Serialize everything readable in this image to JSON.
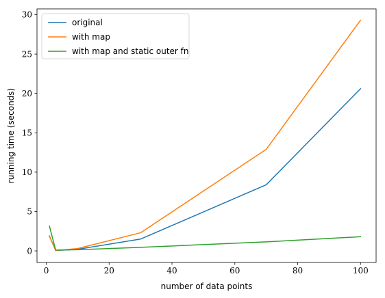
{
  "chart_data": {
    "type": "line",
    "title": "",
    "xlabel": "number of data points",
    "ylabel": "running time (seconds)",
    "xlim": [
      -2.95,
      104.95
    ],
    "ylim": [
      -1.47,
      30.74
    ],
    "xticks": [
      0,
      20,
      40,
      60,
      80,
      100
    ],
    "yticks": [
      0,
      5,
      10,
      15,
      20,
      25,
      30
    ],
    "grid": false,
    "legend_position": "upper-left",
    "series": [
      {
        "name": "original",
        "color": "#1f77b4",
        "x": [
          1,
          3,
          10,
          30,
          70,
          100
        ],
        "y": [
          1.9,
          0.05,
          0.2,
          1.5,
          8.4,
          20.6
        ]
      },
      {
        "name": "with map",
        "color": "#ff7f0e",
        "x": [
          1,
          3,
          10,
          30,
          70,
          100
        ],
        "y": [
          1.85,
          0.05,
          0.3,
          2.3,
          12.9,
          29.3
        ]
      },
      {
        "name": "with map and static outer fn",
        "color": "#2ca02c",
        "x": [
          1,
          3,
          10,
          30,
          70,
          100
        ],
        "y": [
          3.15,
          0.1,
          0.15,
          0.45,
          1.15,
          1.8
        ]
      }
    ]
  }
}
